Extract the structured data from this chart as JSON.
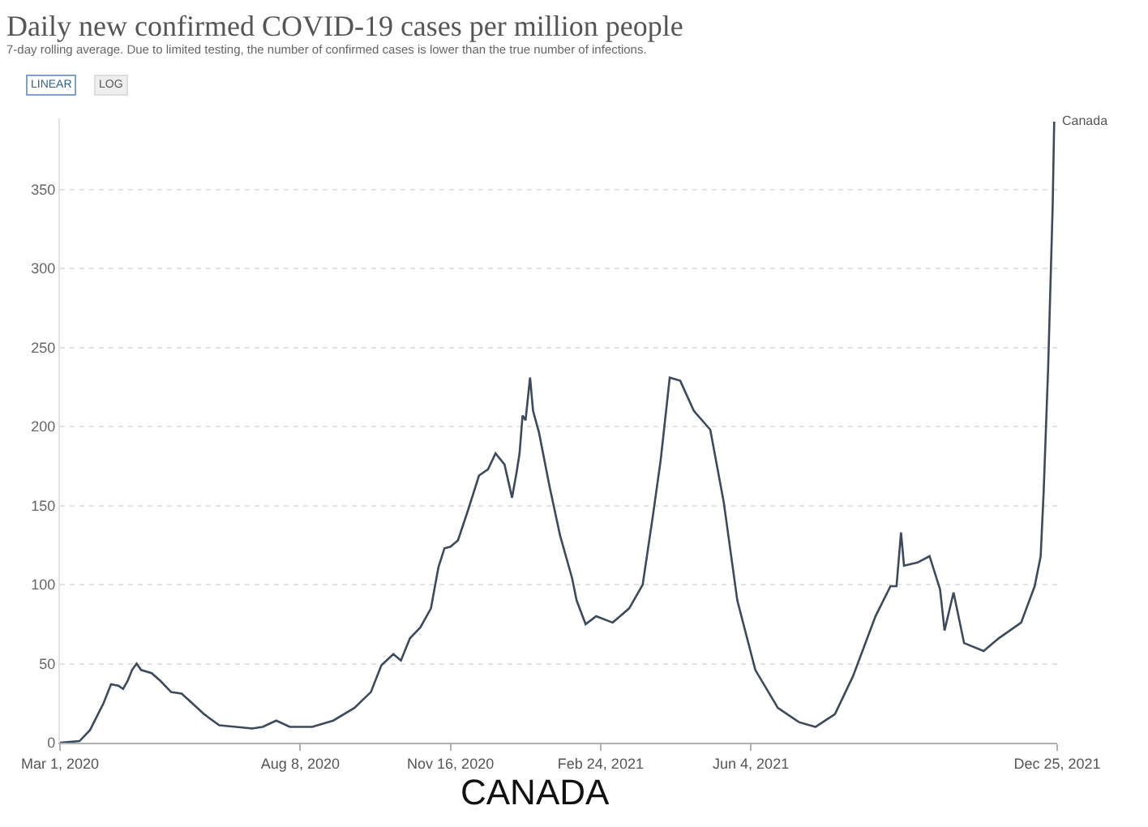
{
  "chart_data": {
    "type": "line",
    "title": "Daily new confirmed COVID-19 cases per million people",
    "subtitle": "7-day rolling average. Due to limited testing, the number of confirmed cases is lower than the true number of infections.",
    "annotations": [
      "LINEAR",
      "LOG",
      "CANADA"
    ],
    "xlim": [
      "2020-03-01",
      "2021-12-25"
    ],
    "ylim": [
      0,
      395
    ],
    "xticks": [
      {
        "value": "2020-03-01",
        "label": "Mar 1, 2020"
      },
      {
        "value": "2020-08-08",
        "label": "Aug 8, 2020"
      },
      {
        "value": "2020-11-16",
        "label": "Nov 16, 2020"
      },
      {
        "value": "2021-02-24",
        "label": "Feb 24, 2021"
      },
      {
        "value": "2021-06-04",
        "label": "Jun 4, 2021"
      },
      {
        "value": "2021-12-25",
        "label": "Dec 25, 2021"
      }
    ],
    "yticks": [
      0,
      50,
      100,
      150,
      200,
      250,
      300,
      350
    ],
    "grid": "y",
    "legend": false,
    "marker": "none",
    "line_style": "solid",
    "series": [
      {
        "name": "Canada",
        "color": "#3d4a5c",
        "x": [
          "2020-03-01",
          "2020-03-14",
          "2020-03-21",
          "2020-03-30",
          "2020-04-04",
          "2020-04-09",
          "2020-04-12",
          "2020-04-15",
          "2020-04-18",
          "2020-04-21",
          "2020-04-24",
          "2020-05-01",
          "2020-05-07",
          "2020-05-14",
          "2020-05-21",
          "2020-05-28",
          "2020-06-05",
          "2020-06-15",
          "2020-06-26",
          "2020-07-07",
          "2020-07-14",
          "2020-07-23",
          "2020-08-01",
          "2020-08-16",
          "2020-08-30",
          "2020-09-13",
          "2020-09-24",
          "2020-10-01",
          "2020-10-09",
          "2020-10-14",
          "2020-10-20",
          "2020-10-27",
          "2020-11-03",
          "2020-11-08",
          "2020-11-12",
          "2020-11-16",
          "2020-11-21",
          "2020-11-28",
          "2020-12-05",
          "2020-12-11",
          "2020-12-16",
          "2020-12-22",
          "2020-12-27",
          "2020-12-30",
          "2021-01-01",
          "2021-01-03",
          "2021-01-05",
          "2021-01-08",
          "2021-01-10",
          "2021-01-14",
          "2021-01-21",
          "2021-01-28",
          "2021-02-05",
          "2021-02-08",
          "2021-02-14",
          "2021-02-21",
          "2021-03-04",
          "2021-03-15",
          "2021-03-24",
          "2021-03-31",
          "2021-04-05",
          "2021-04-11",
          "2021-04-18",
          "2021-04-27",
          "2021-05-08",
          "2021-05-17",
          "2021-05-26",
          "2021-06-07",
          "2021-06-22",
          "2021-07-06",
          "2021-07-17",
          "2021-07-30",
          "2021-08-11",
          "2021-08-26",
          "2021-09-05",
          "2021-09-09",
          "2021-09-12",
          "2021-09-14",
          "2021-09-23",
          "2021-10-01",
          "2021-10-08",
          "2021-10-11",
          "2021-10-17",
          "2021-10-24",
          "2021-11-06",
          "2021-11-16",
          "2021-12-01",
          "2021-12-10",
          "2021-12-14",
          "2021-12-16",
          "2021-12-19",
          "2021-12-22",
          "2021-12-23"
        ],
        "values": [
          0,
          1,
          8,
          25,
          37,
          36,
          34,
          39,
          46,
          50,
          46,
          44,
          39,
          32,
          31,
          25,
          18,
          11,
          10,
          9,
          10,
          14,
          10,
          10,
          14,
          22,
          32,
          49,
          56,
          52,
          66,
          73,
          85,
          111,
          123,
          124,
          128,
          148,
          169,
          173,
          183,
          176,
          155,
          171,
          183,
          207,
          204,
          231,
          210,
          196,
          162,
          131,
          104,
          90,
          75,
          80,
          76,
          85,
          100,
          145,
          179,
          231,
          229,
          210,
          198,
          152,
          90,
          46,
          22,
          13,
          10,
          18,
          42,
          80,
          99,
          99,
          133,
          112,
          114,
          118,
          97,
          71,
          95,
          63,
          58,
          66,
          76,
          99,
          118,
          159,
          238,
          340,
          393
        ]
      }
    ]
  }
}
